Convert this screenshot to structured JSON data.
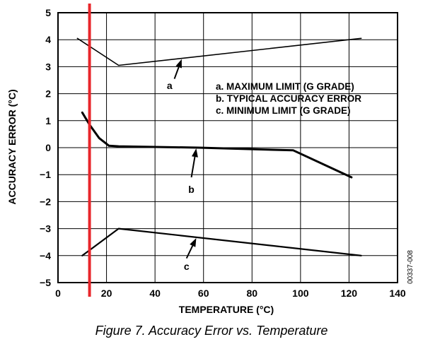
{
  "chart_data": {
    "type": "line",
    "title": "",
    "xlabel": "TEMPERATURE (°C)",
    "ylabel": "ACCURACY ERROR (°C)",
    "xlim": [
      0,
      140
    ],
    "ylim": [
      -5,
      5
    ],
    "x_ticks": [
      "0",
      "20",
      "40",
      "60",
      "80",
      "100",
      "120",
      "140"
    ],
    "y_ticks": [
      "5",
      "4",
      "3",
      "2",
      "1",
      "0",
      "−1",
      "−2",
      "−3",
      "−4",
      "−5"
    ],
    "grid": true,
    "series": [
      {
        "name": "a",
        "points": [
          [
            8,
            4.05
          ],
          [
            25,
            3.05
          ],
          [
            125,
            4.05
          ]
        ]
      },
      {
        "name": "b",
        "points": [
          [
            10,
            1.3
          ],
          [
            13,
            0.85
          ],
          [
            17,
            0.35
          ],
          [
            21,
            0.07
          ],
          [
            25,
            0.05
          ],
          [
            58,
            0.0
          ],
          [
            97,
            -0.1
          ],
          [
            121,
            -1.1
          ]
        ]
      },
      {
        "name": "c",
        "points": [
          [
            10,
            -4.0
          ],
          [
            25,
            -3.0
          ],
          [
            125,
            -4.0
          ]
        ]
      }
    ],
    "legend": [
      "a.  MAXIMUM LIMIT (G GRADE)",
      "b.  TYPICAL ACCURACY ERROR",
      "c.  MINIMUM LIMIT (G GRADE)"
    ],
    "callouts": [
      {
        "label": "a",
        "text_x": 46,
        "text_y": 2.3,
        "tail": [
          48,
          2.55
        ],
        "head": [
          51,
          3.28
        ]
      },
      {
        "label": "b",
        "text_x": 55,
        "text_y": -1.55,
        "tail": [
          55,
          -1.1
        ],
        "head": [
          57,
          -0.03
        ]
      },
      {
        "label": "c",
        "text_x": 53,
        "text_y": -4.4,
        "tail": [
          53,
          -4.1
        ],
        "head": [
          57,
          -3.35
        ]
      }
    ],
    "highlight_marker": {
      "x": 13,
      "color": "#e8262b"
    },
    "figure_id": "00337-008",
    "caption": "Figure 7. Accuracy Error vs. Temperature"
  }
}
